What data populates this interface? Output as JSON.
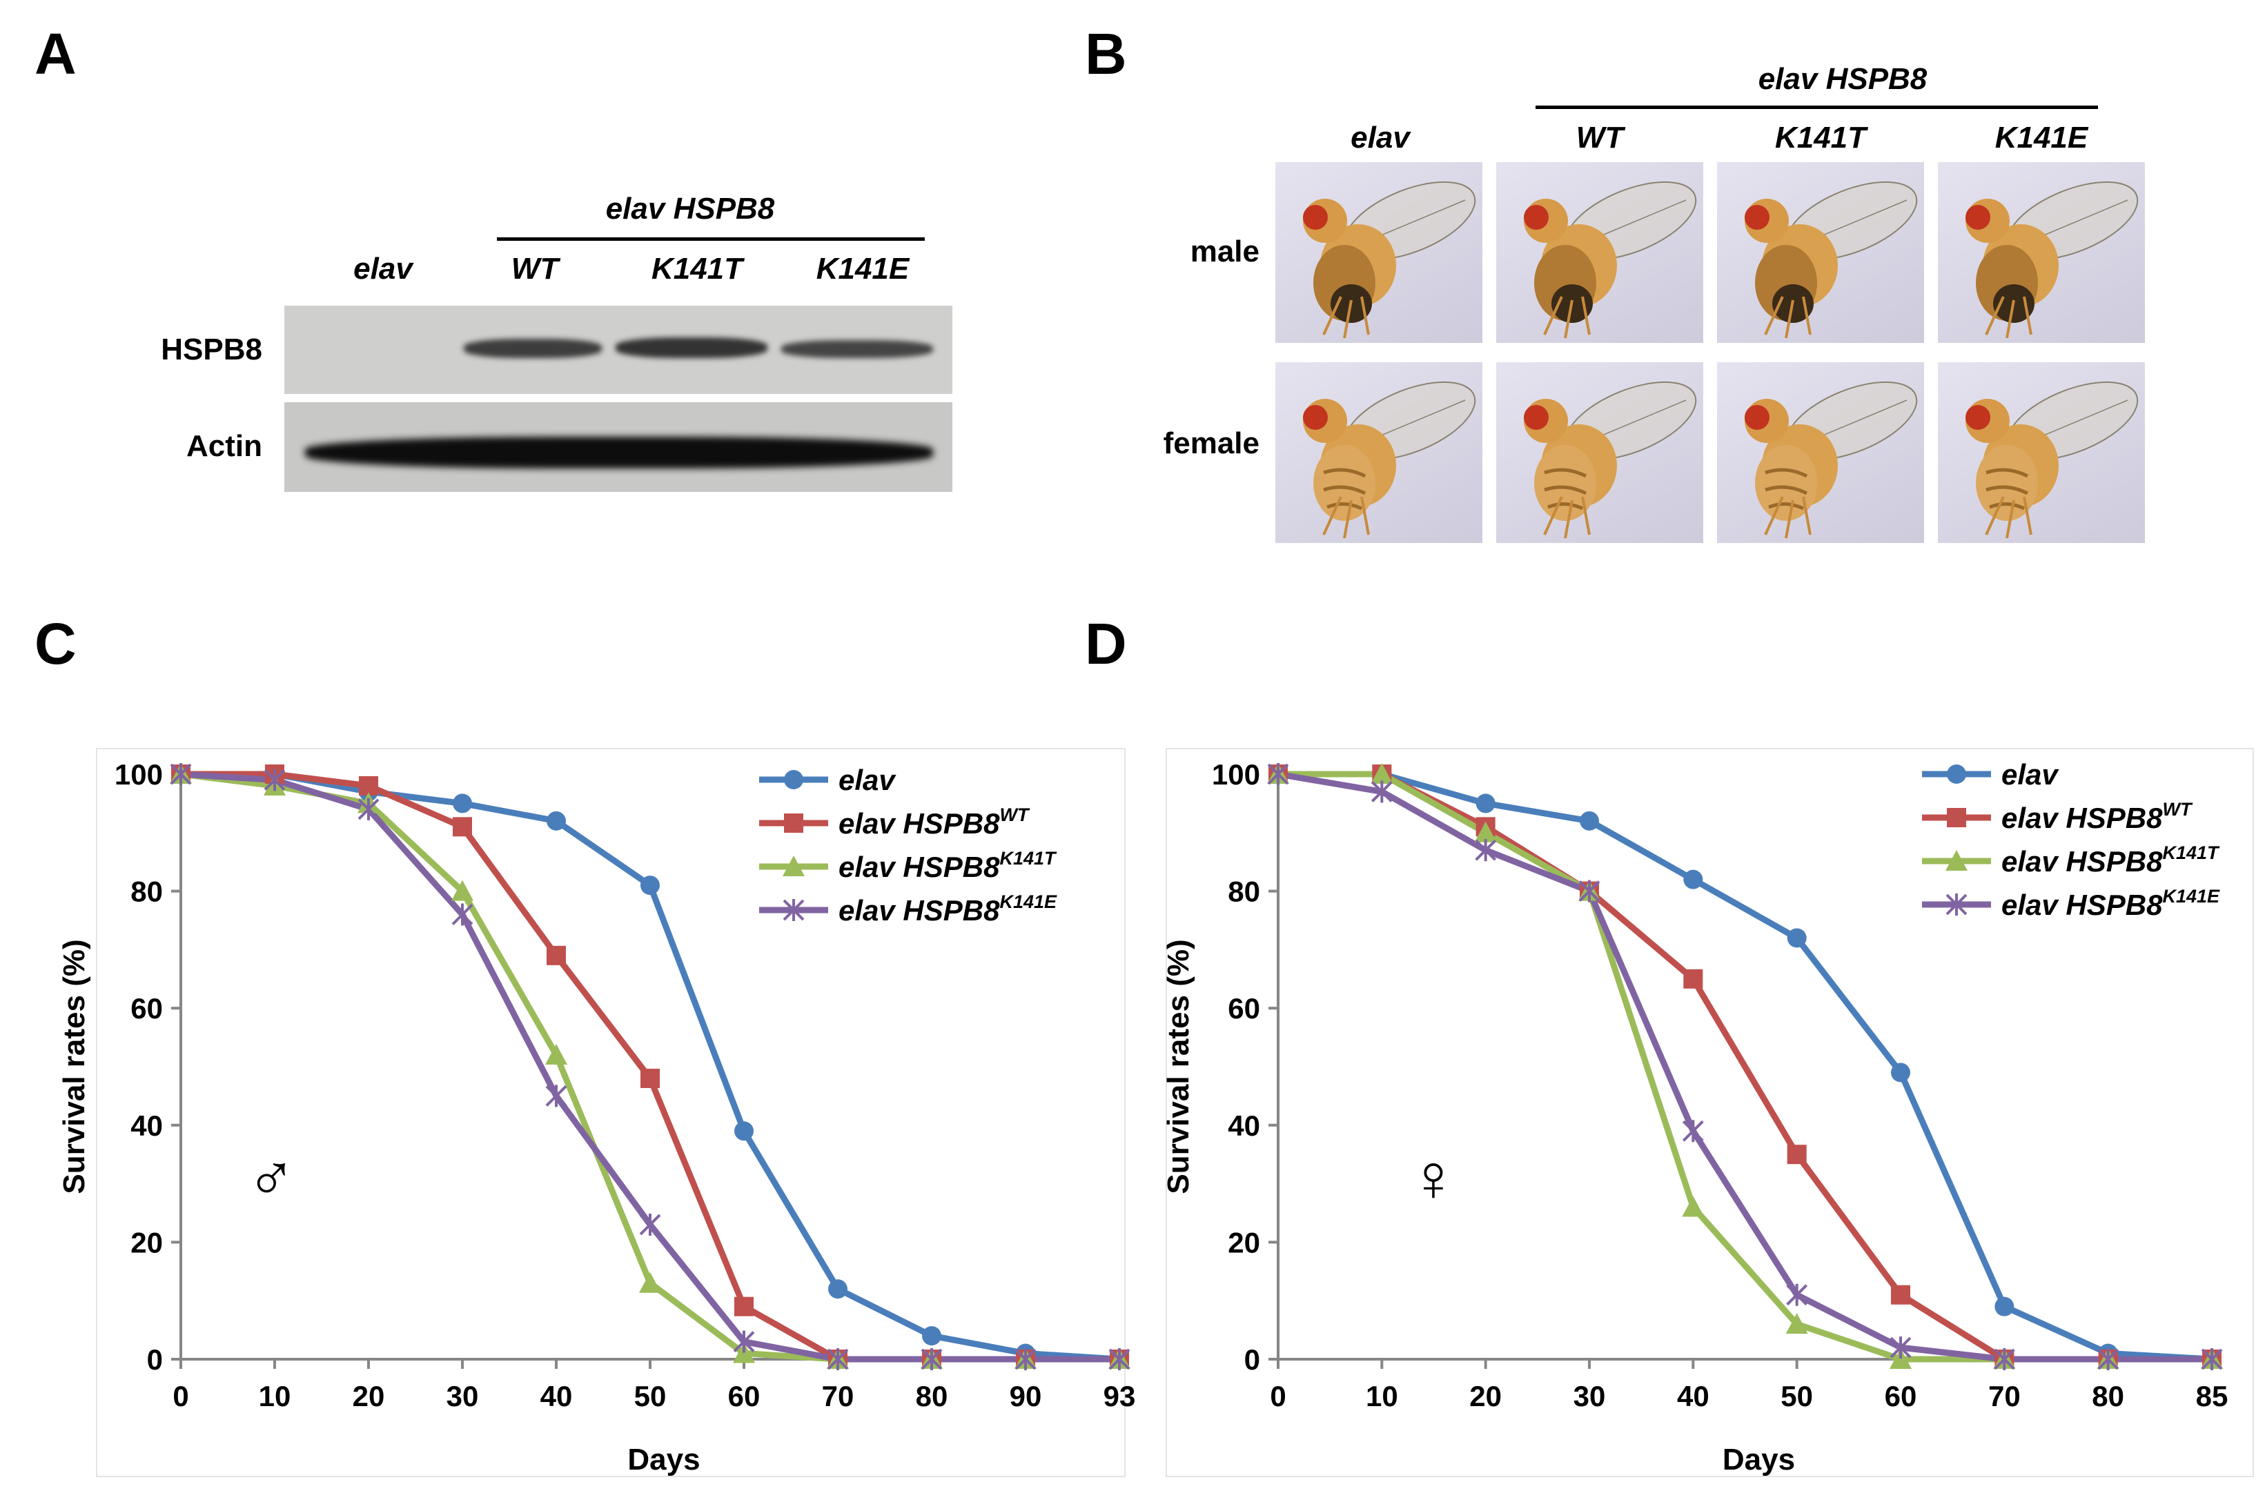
{
  "panels": {
    "a": {
      "letter": "A",
      "header": "elav HSPB8",
      "lanes": [
        "elav",
        "WT",
        "K141T",
        "K141E"
      ],
      "rows": [
        "HSPB8",
        "Actin"
      ]
    },
    "b": {
      "letter": "B",
      "header": "elav HSPB8",
      "columns": [
        "elav",
        "WT",
        "K141T",
        "K141E"
      ],
      "rows": [
        "male",
        "female"
      ]
    },
    "c": {
      "letter": "C"
    },
    "d": {
      "letter": "D"
    }
  },
  "chart_data": [
    {
      "type": "line",
      "panel": "C",
      "xlabel": "Days",
      "ylabel": "Survival rates (%)",
      "sex_symbol": "♂",
      "x": [
        0,
        10,
        20,
        30,
        40,
        50,
        60,
        70,
        80,
        90,
        93
      ],
      "x_tick_labels": [
        "0",
        "10",
        "20",
        "30",
        "40",
        "50",
        "60",
        "70",
        "80",
        "90",
        "93"
      ],
      "ylim": [
        0,
        100
      ],
      "y_ticks": [
        0,
        20,
        40,
        60,
        80,
        100
      ],
      "series": [
        {
          "name": "elav",
          "sup": "",
          "color": "#4a7ebb",
          "marker": "circle",
          "values": [
            100,
            100,
            97,
            95,
            92,
            81,
            39,
            12,
            4,
            1,
            0
          ]
        },
        {
          "name": "elav HSPB8",
          "sup": "WT",
          "color": "#c0504d",
          "marker": "square",
          "values": [
            100,
            100,
            98,
            91,
            69,
            48,
            9,
            0,
            0,
            0,
            0
          ]
        },
        {
          "name": "elav HSPB8",
          "sup": "K141T",
          "color": "#9bbb59",
          "marker": "triangle",
          "values": [
            100,
            98,
            95,
            80,
            52,
            13,
            1,
            0,
            0,
            0,
            0
          ]
        },
        {
          "name": "elav HSPB8",
          "sup": "K141E",
          "color": "#8064a2",
          "marker": "star",
          "values": [
            100,
            99,
            94,
            76,
            45,
            23,
            3,
            0,
            0,
            0,
            0
          ]
        }
      ]
    },
    {
      "type": "line",
      "panel": "D",
      "xlabel": "Days",
      "ylabel": "Survival rates (%)",
      "sex_symbol": "♀",
      "x": [
        0,
        10,
        20,
        30,
        40,
        50,
        60,
        70,
        80,
        85
      ],
      "x_tick_labels": [
        "0",
        "10",
        "20",
        "30",
        "40",
        "50",
        "60",
        "70",
        "80",
        "85"
      ],
      "ylim": [
        0,
        100
      ],
      "y_ticks": [
        0,
        20,
        40,
        60,
        80,
        100
      ],
      "series": [
        {
          "name": "elav",
          "sup": "",
          "color": "#4a7ebb",
          "marker": "circle",
          "values": [
            100,
            100,
            95,
            92,
            82,
            72,
            49,
            9,
            1,
            0
          ]
        },
        {
          "name": "elav HSPB8",
          "sup": "WT",
          "color": "#c0504d",
          "marker": "square",
          "values": [
            100,
            100,
            91,
            80,
            65,
            35,
            11,
            0,
            0,
            0
          ]
        },
        {
          "name": "elav HSPB8",
          "sup": "K141T",
          "color": "#9bbb59",
          "marker": "triangle",
          "values": [
            100,
            100,
            90,
            80,
            26,
            6,
            0,
            0,
            0,
            0
          ]
        },
        {
          "name": "elav HSPB8",
          "sup": "K141E",
          "color": "#8064a2",
          "marker": "star",
          "values": [
            100,
            97,
            87,
            80,
            39,
            11,
            2,
            0,
            0,
            0
          ]
        }
      ]
    }
  ]
}
